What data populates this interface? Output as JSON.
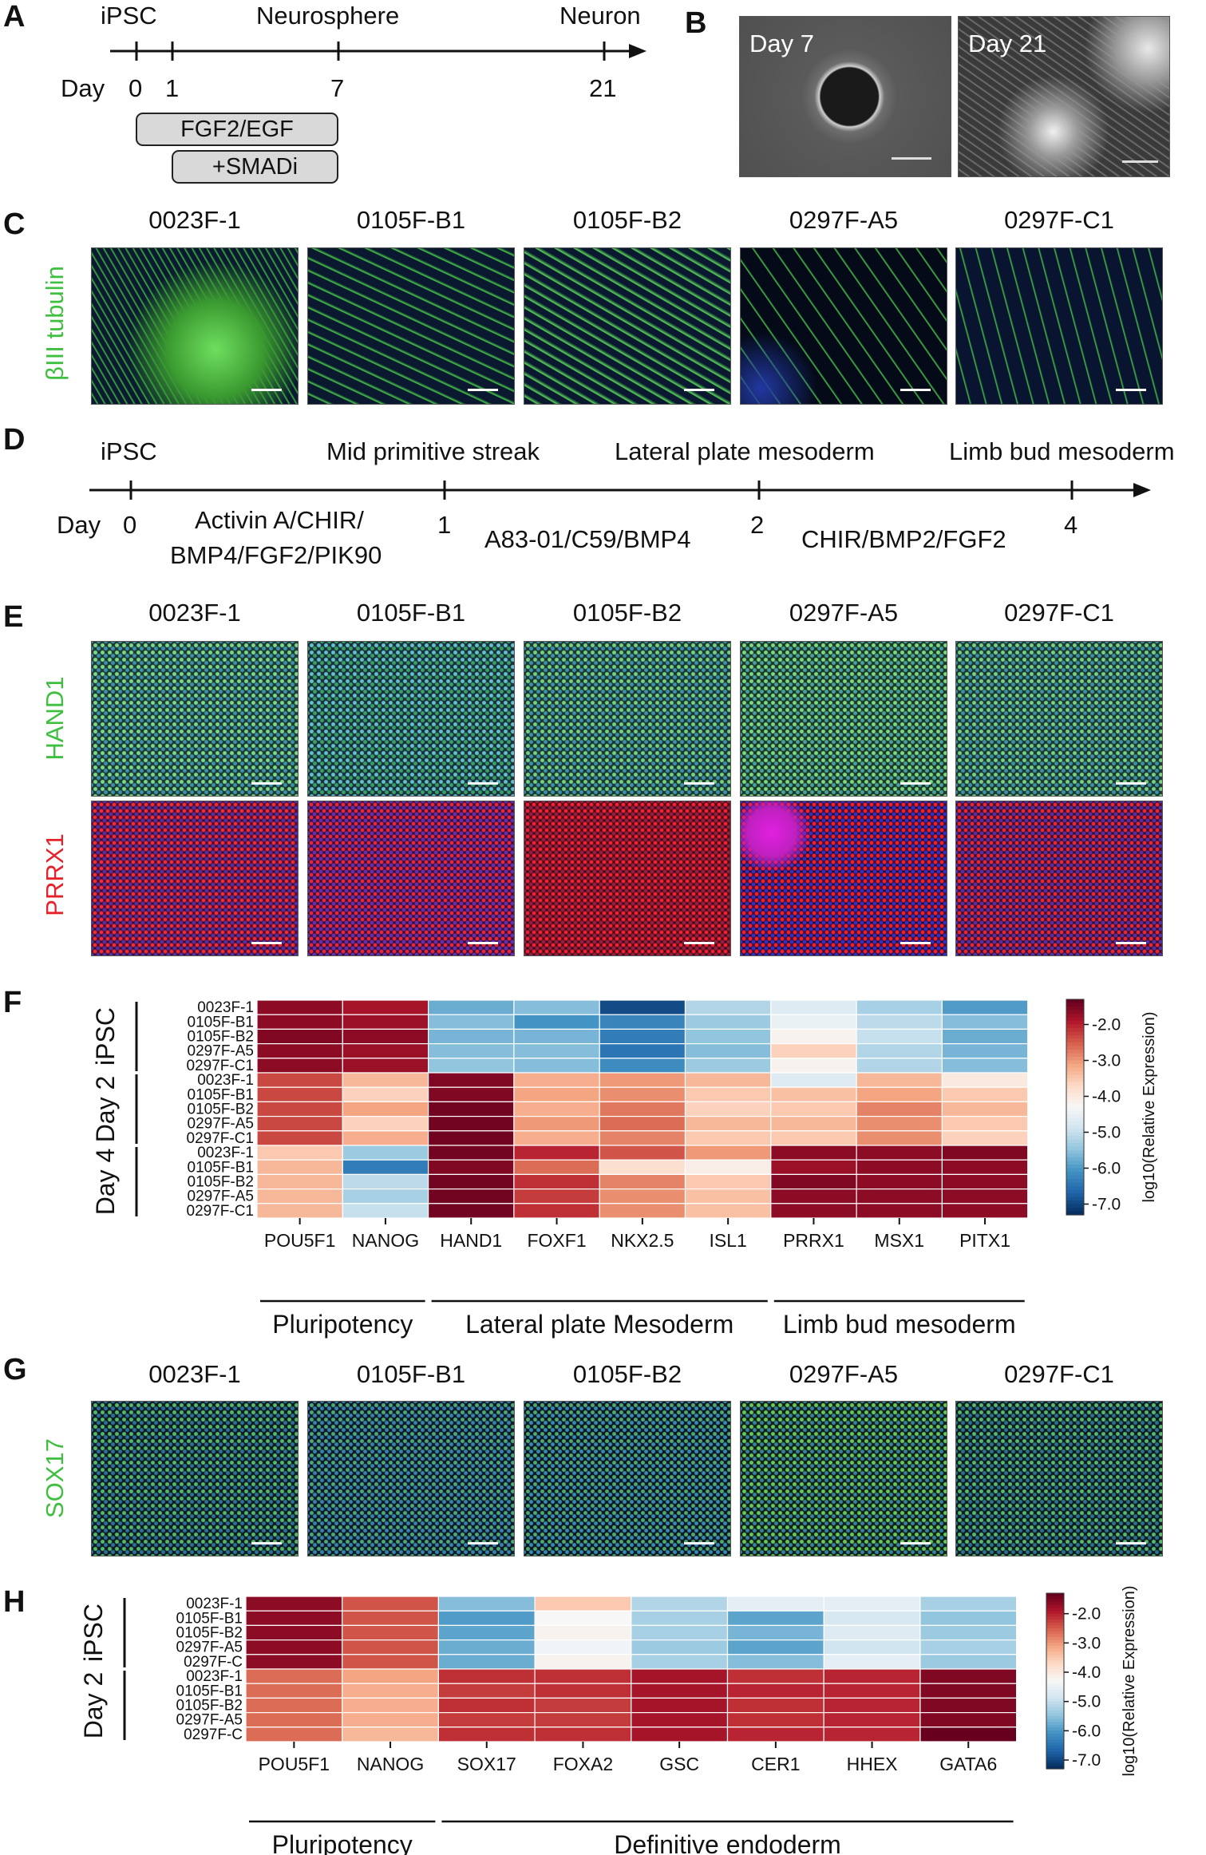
{
  "panels": {
    "A": "A",
    "B": "B",
    "C": "C",
    "D": "D",
    "E": "E",
    "F": "F",
    "G": "G",
    "H": "H"
  },
  "panelA": {
    "stages": [
      "iPSC",
      "Neurosphere",
      "Neuron"
    ],
    "day_label": "Day",
    "days": [
      "0",
      "1",
      "7",
      "21"
    ],
    "treatments": [
      "FGF2/EGF",
      "+SMADi"
    ]
  },
  "panelB": {
    "images": [
      "Day 7",
      "Day 21"
    ]
  },
  "cell_lines": [
    "0023F-1",
    "0105F-B1",
    "0105F-B2",
    "0297F-A5",
    "0297F-C1"
  ],
  "panelC": {
    "stain": "βIII tubulin",
    "stain_color": "#3fbf3f"
  },
  "panelD": {
    "stages": [
      "iPSC",
      "Mid primitive streak",
      "Lateral plate mesoderm",
      "Limb bud mesoderm"
    ],
    "day_label": "Day",
    "days": [
      "0",
      "1",
      "2",
      "4"
    ],
    "treatments": [
      "Activin A/CHIR/",
      "BMP4/FGF2/PIK90",
      "A83-01/C59/BMP4",
      "CHIR/BMP2/FGF2"
    ]
  },
  "panelE": {
    "stains": [
      "HAND1",
      "PRRX1"
    ],
    "stain_colors": [
      "#3fbf3f",
      "#e8202a"
    ]
  },
  "panelG": {
    "stain": "SOX17",
    "stain_color": "#3fbf3f"
  },
  "colors": {
    "high": "#67001f",
    "mid": "#f7f7f7",
    "low": "#053061"
  },
  "chart_data": [
    {
      "type": "heatmap",
      "panel": "F",
      "group_labels": [
        "iPSC",
        "Day 2",
        "Day 4"
      ],
      "row_labels": [
        "0023F-1",
        "0105F-B1",
        "0105F-B2",
        "0297F-A5",
        "0297F-C1",
        "0023F-1",
        "0105F-B1",
        "0105F-B2",
        "0297F-A5",
        "0297F-C1",
        "0023F-1",
        "0105F-B1",
        "0105F-B2",
        "0297F-A5",
        "0297F-C1"
      ],
      "columns": [
        "POU5F1",
        "NANOG",
        "HAND1",
        "FOXF1",
        "NKX2.5",
        "ISL1",
        "PRRX1",
        "MSX1",
        "PITX1"
      ],
      "column_groups": [
        {
          "label": "Pluripotency",
          "span": [
            0,
            1
          ]
        },
        {
          "label": "Lateral plate Mesoderm",
          "span": [
            2,
            5
          ]
        },
        {
          "label": "Limb bud mesoderm",
          "span": [
            6,
            8
          ]
        }
      ],
      "colorbar": {
        "label": "log10(Relative Expression)",
        "ticks": [
          "-2.0",
          "-3.0",
          "-4.0",
          "-5.0",
          "-6.0",
          "-7.0"
        ],
        "range": [
          -7.3,
          -1.3
        ]
      },
      "values": [
        [
          -1.6,
          -1.8,
          -5.8,
          -5.6,
          -7.0,
          -5.2,
          -4.7,
          -5.3,
          -6.0
        ],
        [
          -1.6,
          -1.7,
          -5.6,
          -6.1,
          -6.3,
          -5.4,
          -4.5,
          -5.1,
          -5.6
        ],
        [
          -1.5,
          -1.6,
          -5.7,
          -5.7,
          -6.4,
          -5.5,
          -4.2,
          -5.0,
          -5.8
        ],
        [
          -1.6,
          -1.7,
          -5.6,
          -5.6,
          -6.5,
          -5.6,
          -3.6,
          -5.2,
          -5.7
        ],
        [
          -1.6,
          -1.7,
          -5.5,
          -5.6,
          -6.2,
          -5.4,
          -4.2,
          -5.2,
          -5.6
        ],
        [
          -2.3,
          -3.3,
          -1.5,
          -3.2,
          -3.0,
          -3.3,
          -4.7,
          -3.3,
          -4.0
        ],
        [
          -2.3,
          -3.6,
          -1.5,
          -3.1,
          -2.9,
          -3.5,
          -3.4,
          -3.1,
          -3.5
        ],
        [
          -2.3,
          -3.1,
          -1.4,
          -3.2,
          -2.7,
          -3.6,
          -3.5,
          -2.8,
          -3.3
        ],
        [
          -2.3,
          -3.6,
          -1.4,
          -3.0,
          -2.6,
          -3.3,
          -3.3,
          -2.9,
          -3.5
        ],
        [
          -2.3,
          -3.2,
          -1.4,
          -3.2,
          -2.8,
          -3.5,
          -3.5,
          -2.9,
          -3.6
        ],
        [
          -3.5,
          -5.4,
          -1.4,
          -2.0,
          -2.4,
          -3.0,
          -1.6,
          -1.6,
          -1.5
        ],
        [
          -3.3,
          -6.4,
          -1.5,
          -2.6,
          -3.8,
          -4.1,
          -1.7,
          -1.6,
          -1.6
        ],
        [
          -3.3,
          -5.1,
          -1.4,
          -2.1,
          -2.8,
          -3.5,
          -1.5,
          -1.6,
          -1.6
        ],
        [
          -3.3,
          -5.3,
          -1.4,
          -2.2,
          -2.9,
          -3.4,
          -1.6,
          -1.6,
          -1.6
        ],
        [
          -3.3,
          -5.0,
          -1.4,
          -2.1,
          -2.9,
          -3.4,
          -1.6,
          -1.6,
          -1.6
        ]
      ]
    },
    {
      "type": "heatmap",
      "panel": "H",
      "group_labels": [
        "iPSC",
        "Day 2"
      ],
      "row_labels": [
        "0023F-1",
        "0105F-B1",
        "0105F-B2",
        "0297F-A5",
        "0297F-C",
        "0023F-1",
        "0105F-B1",
        "0105F-B2",
        "0297F-A5",
        "0297F-C"
      ],
      "columns": [
        "POU5F1",
        "NANOG",
        "SOX17",
        "FOXA2",
        "GSC",
        "CER1",
        "HHEX",
        "GATA6"
      ],
      "column_groups": [
        {
          "label": "Pluripotency",
          "span": [
            0,
            1
          ]
        },
        {
          "label": "Definitive endoderm",
          "span": [
            2,
            7
          ]
        }
      ],
      "colorbar": {
        "label": "log10(Relative Expression)",
        "ticks": [
          "-2.0",
          "-3.0",
          "-4.0",
          "-5.0",
          "-6.0",
          "-7.0"
        ],
        "range": [
          -7.3,
          -1.3
        ]
      },
      "values": [
        [
          -1.6,
          -2.4,
          -5.6,
          -3.5,
          -5.2,
          -4.6,
          -4.6,
          -5.3
        ],
        [
          -1.6,
          -2.4,
          -6.0,
          -4.3,
          -5.3,
          -5.9,
          -4.8,
          -5.5
        ],
        [
          -1.6,
          -2.4,
          -5.9,
          -4.2,
          -5.3,
          -5.7,
          -4.7,
          -5.4
        ],
        [
          -1.6,
          -2.4,
          -5.8,
          -4.4,
          -5.4,
          -5.9,
          -4.9,
          -5.3
        ],
        [
          -1.6,
          -2.4,
          -5.8,
          -4.2,
          -5.3,
          -5.6,
          -4.6,
          -5.4
        ],
        [
          -2.6,
          -3.1,
          -2.1,
          -2.1,
          -1.8,
          -2.1,
          -2.0,
          -1.5
        ],
        [
          -2.6,
          -3.2,
          -2.2,
          -2.1,
          -1.8,
          -2.0,
          -2.0,
          -1.5
        ],
        [
          -2.6,
          -3.2,
          -2.1,
          -2.2,
          -1.8,
          -2.1,
          -2.0,
          -1.5
        ],
        [
          -2.6,
          -3.2,
          -2.2,
          -2.2,
          -1.8,
          -2.1,
          -2.0,
          -1.5
        ],
        [
          -2.6,
          -3.3,
          -2.1,
          -2.1,
          -1.8,
          -2.0,
          -2.0,
          -1.3
        ]
      ]
    }
  ]
}
